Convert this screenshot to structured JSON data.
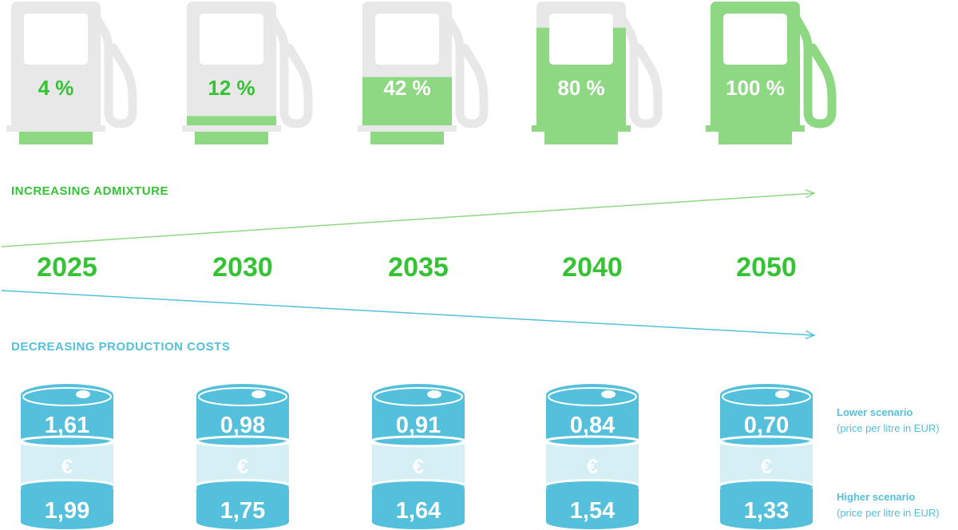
{
  "colors": {
    "green": "#8ed883",
    "green_dark": "#35c235",
    "grey": "#e8e8e8",
    "blue": "#54c0db",
    "blue_light": "#d5eff5",
    "arrow_green": "#8ed883",
    "arrow_blue": "#54c0db"
  },
  "labels": {
    "increasing": "INCREASING ADMIXTURE",
    "decreasing": "DECREASING PRODUCTION COSTS",
    "euro_symbol": "€"
  },
  "legend": {
    "lower_title": "Lower scenario",
    "lower_sub": "(price per litre in EUR)",
    "higher_title": "Higher scenario",
    "higher_sub": "(price per litre in EUR)"
  },
  "chart_data": {
    "type": "infographic",
    "title": "",
    "years": [
      "2025",
      "2030",
      "2035",
      "2040",
      "2050"
    ],
    "admixture": {
      "name": "Increasing admixture",
      "unit": "%",
      "values": [
        4,
        12,
        42,
        80,
        100
      ],
      "value_labels": [
        "4 %",
        "12 %",
        "42 %",
        "80 %",
        "100 %"
      ]
    },
    "costs": {
      "name": "Decreasing production costs",
      "unit": "EUR per litre",
      "series": [
        {
          "name": "Lower scenario",
          "values": [
            1.61,
            0.98,
            0.91,
            0.84,
            0.7
          ],
          "value_labels": [
            "1,61",
            "0,98",
            "0,91",
            "0,84",
            "0,70"
          ]
        },
        {
          "name": "Higher scenario",
          "values": [
            1.99,
            1.75,
            1.64,
            1.54,
            1.33
          ],
          "value_labels": [
            "1,99",
            "1,75",
            "1,64",
            "1,54",
            "1,33"
          ]
        }
      ]
    }
  }
}
